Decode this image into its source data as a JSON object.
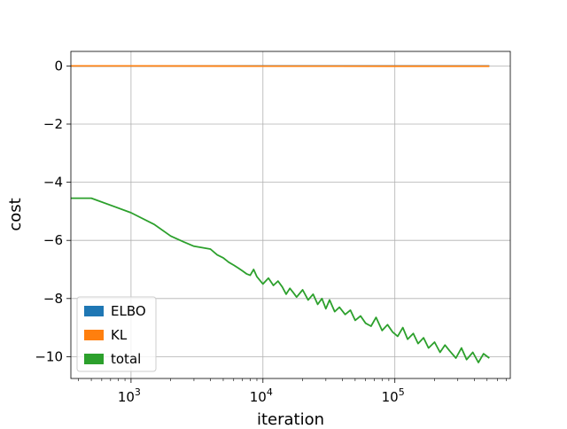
{
  "chart_data": {
    "type": "line",
    "title": "",
    "xlabel": "iteration",
    "ylabel": "cost",
    "xscale": "log",
    "xlim": [
      350,
      750000
    ],
    "ylim": [
      -10.75,
      0.5
    ],
    "grid": true,
    "legend_placement": "lower-left",
    "x_ticks": [
      {
        "value": 1000,
        "base": "10",
        "exp": "3"
      },
      {
        "value": 10000,
        "base": "10",
        "exp": "4"
      },
      {
        "value": 100000,
        "base": "10",
        "exp": "5"
      }
    ],
    "y_ticks": [
      {
        "value": 0,
        "label": "0"
      },
      {
        "value": -2,
        "label": "−2"
      },
      {
        "value": -4,
        "label": "−4"
      },
      {
        "value": -6,
        "label": "−6"
      },
      {
        "value": -8,
        "label": "−8"
      },
      {
        "value": -10,
        "label": "−10"
      }
    ],
    "series": [
      {
        "name": "ELBO",
        "color": "#1f77b4",
        "x": [
          350,
          500,
          1000,
          10000,
          100000,
          520000
        ],
        "y": [
          0,
          0,
          0,
          0,
          0,
          0
        ]
      },
      {
        "name": "KL",
        "color": "#ff7f0e",
        "x": [
          350,
          500,
          1000,
          10000,
          100000,
          520000
        ],
        "y": [
          0,
          0,
          0,
          -0.005,
          -0.01,
          -0.01
        ]
      },
      {
        "name": "total",
        "color": "#2ca02c",
        "x": [
          350,
          500,
          1000,
          1500,
          2000,
          2500,
          3000,
          4000,
          4500,
          5000,
          5500,
          6000,
          6500,
          7000,
          7500,
          8000,
          8500,
          9000,
          10000,
          11000,
          12000,
          13000,
          14000,
          15000,
          16000,
          17000,
          18000,
          20000,
          22000,
          24000,
          26000,
          28000,
          30000,
          32000,
          35000,
          38000,
          42000,
          46000,
          50000,
          55000,
          60000,
          66000,
          72000,
          80000,
          88000,
          96000,
          105000,
          115000,
          125000,
          138000,
          150000,
          165000,
          180000,
          200000,
          220000,
          240000,
          260000,
          290000,
          320000,
          350000,
          390000,
          430000,
          470000,
          520000
        ],
        "y": [
          -4.55,
          -4.55,
          -5.05,
          -5.45,
          -5.85,
          -6.05,
          -6.2,
          -6.3,
          -6.5,
          -6.6,
          -6.75,
          -6.85,
          -6.95,
          -7.05,
          -7.15,
          -7.2,
          -7.0,
          -7.25,
          -7.5,
          -7.3,
          -7.55,
          -7.4,
          -7.6,
          -7.85,
          -7.65,
          -7.8,
          -7.95,
          -7.7,
          -8.05,
          -7.85,
          -8.2,
          -8.0,
          -8.35,
          -8.05,
          -8.45,
          -8.3,
          -8.55,
          -8.4,
          -8.75,
          -8.6,
          -8.85,
          -8.95,
          -8.65,
          -9.1,
          -8.9,
          -9.15,
          -9.3,
          -9.0,
          -9.4,
          -9.2,
          -9.55,
          -9.35,
          -9.7,
          -9.5,
          -9.85,
          -9.6,
          -9.8,
          -10.05,
          -9.7,
          -10.1,
          -9.85,
          -10.2,
          -9.9,
          -10.05
        ]
      }
    ]
  }
}
